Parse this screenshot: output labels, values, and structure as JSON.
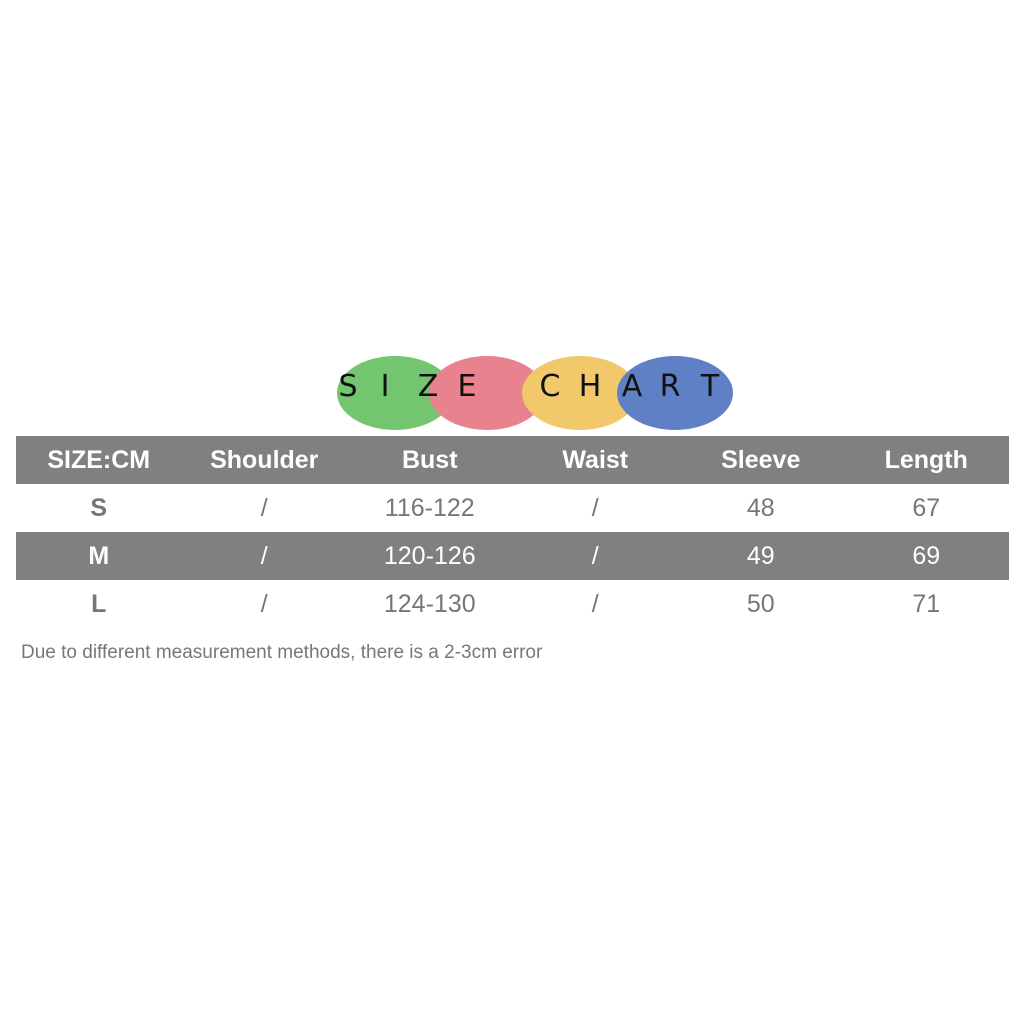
{
  "logo": {
    "title": "SIZE CHART",
    "letters": [
      "S",
      "I",
      "Z",
      "E",
      "C",
      "H",
      "A",
      "R",
      "T"
    ],
    "circle_colors": [
      "#74c56f",
      "#e8828f",
      "#f1c86a",
      "#5f80c5"
    ]
  },
  "table": {
    "headers": [
      "SIZE:CM",
      "Shoulder",
      "Bust",
      "Waist",
      "Sleeve",
      "Length"
    ],
    "rows": [
      [
        "S",
        "/",
        "116-122",
        "/",
        "48",
        "67"
      ],
      [
        "M",
        "/",
        "120-126",
        "/",
        "49",
        "69"
      ],
      [
        "L",
        "/",
        "124-130",
        "/",
        "50",
        "71"
      ]
    ],
    "stripe_color": "#808080"
  },
  "note": "Due to different measurement methods, there is a 2-3cm error"
}
